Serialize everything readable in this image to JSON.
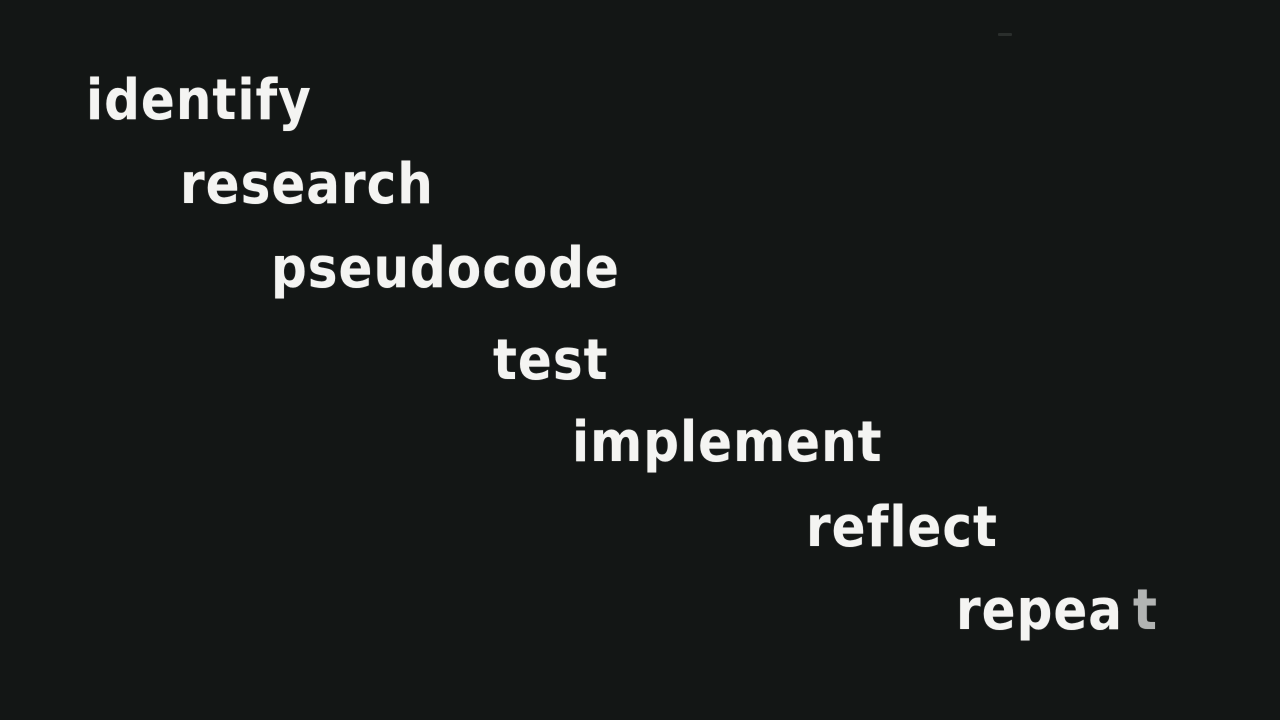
{
  "words": [
    {
      "text": "identify"
    },
    {
      "text": "research"
    },
    {
      "text": "pseudocode"
    },
    {
      "text": "test"
    },
    {
      "text": "implement"
    },
    {
      "text": "reflect"
    },
    {
      "text": "repea",
      "trailing": "t"
    }
  ],
  "colors": {
    "background": "#131615",
    "text": "#f4f4f2",
    "trailing_text": "#cfd1cf"
  }
}
